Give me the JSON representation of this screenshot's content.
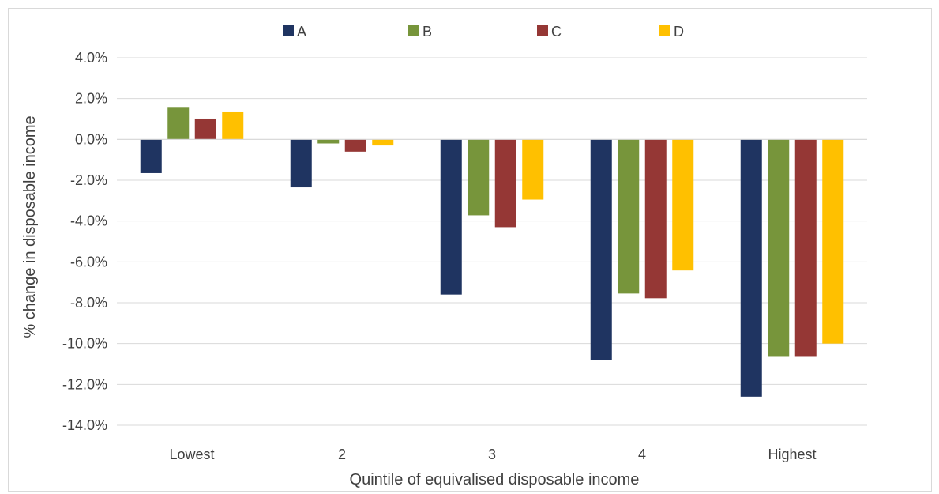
{
  "chart_data": {
    "type": "bar",
    "title": "",
    "xlabel": "Quintile of equivalised disposable income",
    "ylabel": "% change in disposable income",
    "categories": [
      "Lowest",
      "2",
      "3",
      "4",
      "Highest"
    ],
    "series": [
      {
        "name": "A",
        "color": "#1f3461",
        "values": [
          -1.65,
          -2.35,
          -7.6,
          -10.82,
          -12.6
        ]
      },
      {
        "name": "B",
        "color": "#77953b",
        "values": [
          1.55,
          -0.2,
          -3.72,
          -7.55,
          -10.65
        ]
      },
      {
        "name": "C",
        "color": "#953735",
        "values": [
          1.02,
          -0.6,
          -4.3,
          -7.78,
          -10.65
        ]
      },
      {
        "name": "D",
        "color": "#ffc000",
        "values": [
          1.33,
          -0.3,
          -2.95,
          -6.42,
          -10.0
        ]
      }
    ],
    "ylim": [
      -14,
      4
    ],
    "yticks": [
      4,
      2,
      0,
      -2,
      -4,
      -6,
      -8,
      -10,
      -12,
      -14
    ],
    "ytick_labels": [
      "4.0%",
      "2.0%",
      "0.0%",
      "-2.0%",
      "-4.0%",
      "-6.0%",
      "-8.0%",
      "-10.0%",
      "-12.0%",
      "-14.0%"
    ],
    "grid": true,
    "legend_position": "top"
  }
}
